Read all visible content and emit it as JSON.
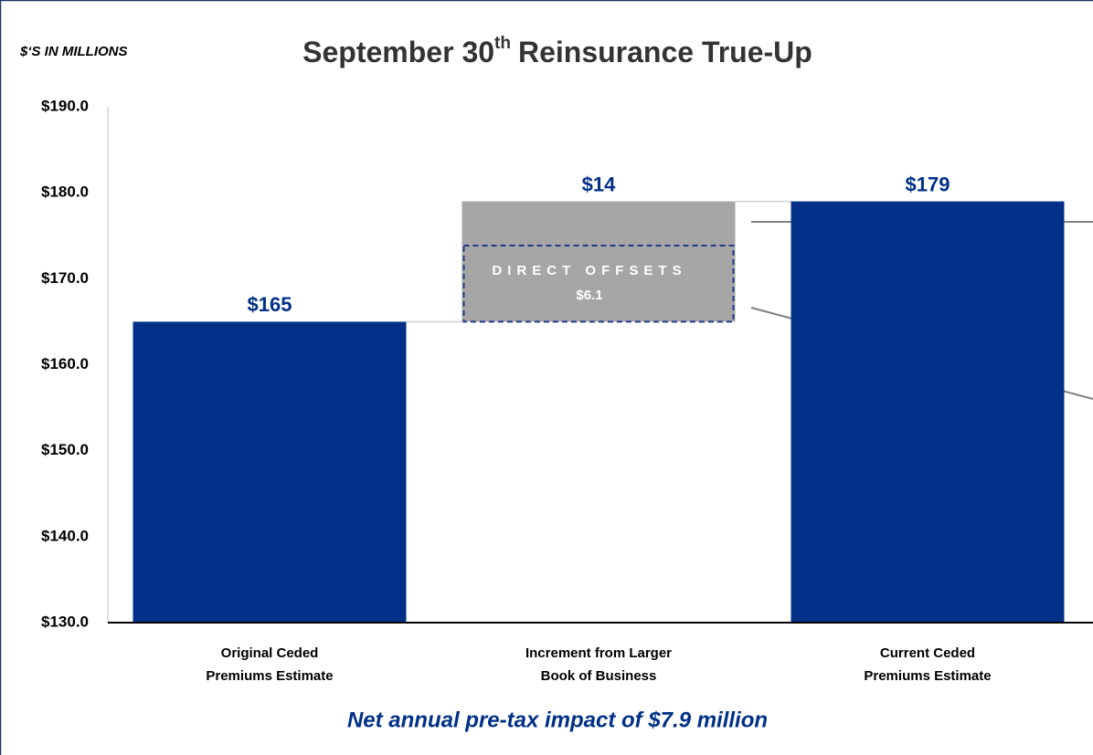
{
  "chart_data": {
    "type": "waterfall",
    "title": {
      "main": "September 30",
      "superscript": "th",
      "rest": "Reinsurance True-Up"
    },
    "unit_label": "$‘S IN MILLIONS",
    "footnote": "Net annual pre-tax impact of $7.9 million",
    "categories": [
      [
        "Original Ceded",
        "Premiums Estimate"
      ],
      [
        "Increment from Larger",
        "Book of Business"
      ],
      [
        "Current Ceded",
        "Premiums Estimate"
      ]
    ],
    "measures": [
      "absolute",
      "relative",
      "total"
    ],
    "values": [
      165,
      14,
      179
    ],
    "value_labels": [
      "$165",
      "$14",
      "$179"
    ],
    "colors": [
      "#003087",
      "#a6a6a6",
      "#003087"
    ],
    "annotation": {
      "label": "DIRECT OFFSETS",
      "value": 6.1,
      "value_label": "$6.1"
    },
    "ylim": [
      130,
      190
    ],
    "yticks": [
      {
        "value": 130,
        "label": "$130.0"
      },
      {
        "value": 140,
        "label": "$140.0"
      },
      {
        "value": 150,
        "label": "$150.0"
      },
      {
        "value": 160,
        "label": "$160.0"
      },
      {
        "value": 170,
        "label": "$170.0"
      },
      {
        "value": 180,
        "label": "$180.0"
      },
      {
        "value": 190,
        "label": "$190.0"
      }
    ],
    "grid": false
  }
}
